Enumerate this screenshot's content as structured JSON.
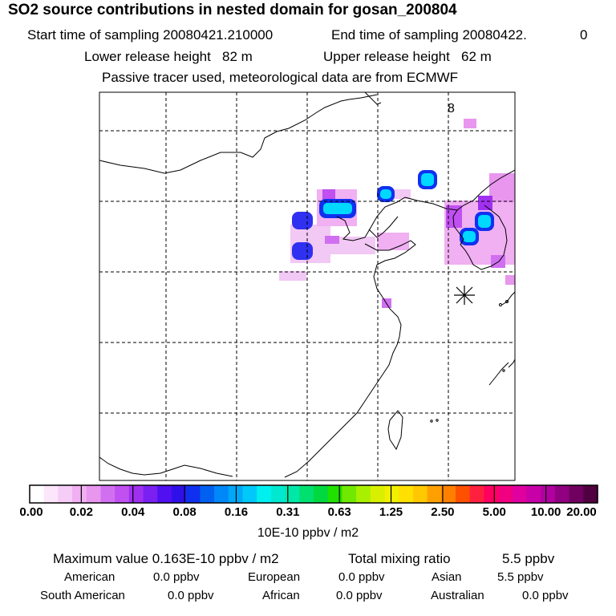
{
  "header": {
    "title": "SO2 source contributions in nested domain for gosan_200804",
    "start_label": "Start time of sampling 20080421.210000",
    "end_label": "End time of sampling 20080422.",
    "end_value": "0",
    "lower_release": "Lower release height   82 m",
    "upper_release": "Upper release height   62 m",
    "tracer_note": "Passive tracer used, meteorological data are from ECMWF"
  },
  "map": {
    "corner_label": "8",
    "receptor_symbol": "receptor-star",
    "colors": {
      "magenta_light": "#f2c8f4",
      "magenta": "#e060f0",
      "purple": "#a020f0",
      "blue": "#3030f0",
      "cyan": "#00e8f8",
      "core": "#00b0ff"
    }
  },
  "colorbar": {
    "colors": [
      "#ffffff",
      "#fbe6fb",
      "#f6cdf6",
      "#f0b0f2",
      "#e896ee",
      "#d070f0",
      "#c050f0",
      "#a030f0",
      "#7a20f0",
      "#5010f0",
      "#3010e8",
      "#1030f0",
      "#0060f0",
      "#0088f8",
      "#00a8f8",
      "#00c8f8",
      "#00f0f0",
      "#00e8d0",
      "#00e8a8",
      "#00e070",
      "#00d840",
      "#20e000",
      "#70e800",
      "#a8f000",
      "#d8f000",
      "#f0f000",
      "#ffe000",
      "#ffc800",
      "#ffa000",
      "#ff8000",
      "#ff5000",
      "#ff2040",
      "#ff0060",
      "#f00080",
      "#e000a0",
      "#c800a8",
      "#b000a0",
      "#900080",
      "#700060",
      "#500040"
    ],
    "ticks": [
      "0.00",
      "0.02",
      "0.04",
      "0.08",
      "0.16",
      "0.31",
      "0.63",
      "1.25",
      "2.50",
      "5.00",
      "10.00",
      "20.00"
    ],
    "units": "10E-10 ppbv / m2"
  },
  "stats": {
    "maximum": "Maximum value  0.163E-10 ppbv / m2",
    "total_label": "Total mixing ratio",
    "total_value": "5.5 ppbv",
    "regions": [
      {
        "name": "American",
        "value": "0.0 ppbv"
      },
      {
        "name": "European",
        "value": "0.0 ppbv"
      },
      {
        "name": "Asian",
        "value": "5.5 ppbv"
      },
      {
        "name": "South American",
        "value": "0.0 ppbv"
      },
      {
        "name": "African",
        "value": "0.0 ppbv"
      },
      {
        "name": "Australian",
        "value": "0.0 ppbv"
      }
    ]
  }
}
